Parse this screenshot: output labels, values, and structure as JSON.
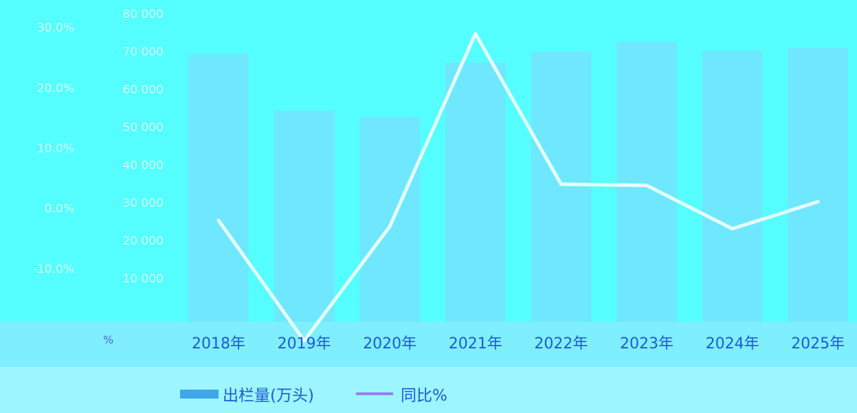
{
  "chart_data": {
    "type": "bar",
    "categories": [
      "2018年",
      "2019年",
      "2020年",
      "2021年",
      "2022年",
      "2023年",
      "2024年",
      "2025年"
    ],
    "series": [
      {
        "name": "出栏量(万头)",
        "type": "bar",
        "axis": "left",
        "color": "#6FE8FF",
        "values": [
          69382,
          54419,
          52704,
          67128,
          69995,
          72662,
          70200,
          71000
        ]
      },
      {
        "name": "同比%",
        "type": "line",
        "axis": "right",
        "color": "#E6FFFF",
        "values": [
          -2.0,
          -22.0,
          -3.0,
          29.0,
          4.0,
          3.8,
          -3.4,
          1.1
        ]
      }
    ],
    "left_axis": {
      "ticks": [
        10000,
        20000,
        30000,
        40000,
        50000,
        60000,
        70000,
        80000
      ],
      "tick_labels": [
        "10 000",
        "20 000",
        "30 000",
        "40 000",
        "50 000",
        "60 000",
        "70 000",
        "80 000"
      ],
      "ylim": [
        0,
        80000
      ]
    },
    "right_axis": {
      "ticks": [
        -10,
        0,
        10,
        20,
        30
      ],
      "tick_labels": [
        "-10.0%",
        "0.0%",
        "10.0%",
        "20.0%",
        "30.0%"
      ],
      "ylim": [
        -17.9,
        32.3
      ]
    },
    "y2label": "%",
    "legend_position": "bottom-center",
    "grid": false
  },
  "colors": {
    "background": "#55FFFF",
    "bar": "#6FE8FF",
    "line": "#E6FFFF",
    "text": "#1E5BD6",
    "line_legend": "#9A7CF0"
  }
}
